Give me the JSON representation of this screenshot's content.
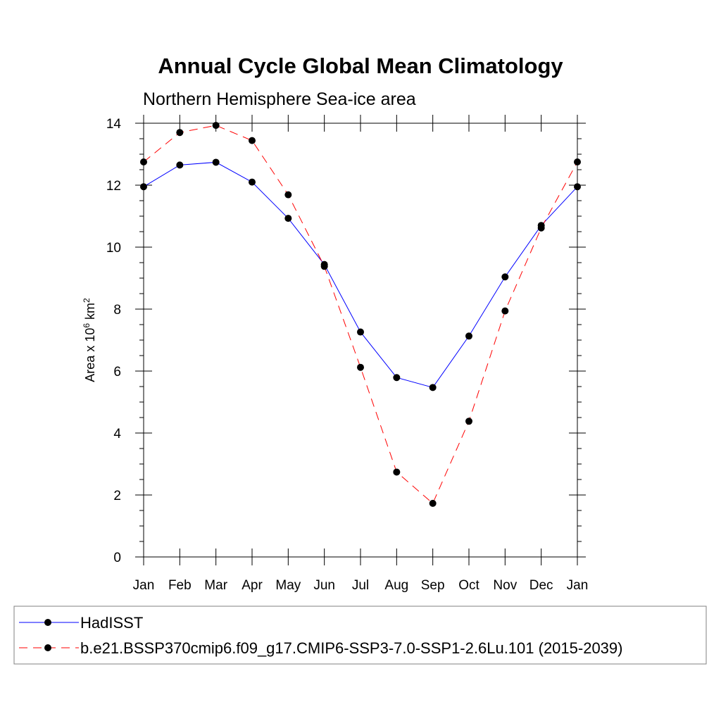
{
  "chart_data": {
    "type": "line",
    "title": "Annual Cycle Global Mean Climatology",
    "subtitle": "Northern Hemisphere Sea-ice area",
    "ylabel": {
      "prefix": "Area x 10",
      "exp": "6",
      "unit": " km",
      "unit_exp": "2"
    },
    "xlabel": "",
    "categories": [
      "Jan",
      "Feb",
      "Mar",
      "Apr",
      "May",
      "Jun",
      "Jul",
      "Aug",
      "Sep",
      "Oct",
      "Nov",
      "Dec",
      "Jan"
    ],
    "ylim": [
      0,
      14
    ],
    "yticks": [
      "0",
      "2",
      "4",
      "6",
      "8",
      "10",
      "12",
      "14"
    ],
    "grid": false,
    "legend_placement": "bottom",
    "series": [
      {
        "name": "HadISST",
        "color": "#0000ff",
        "dash": "solid",
        "marker": "filled-circle",
        "values": [
          11.95,
          12.65,
          12.74,
          12.1,
          10.93,
          9.44,
          7.26,
          5.79,
          5.47,
          7.13,
          9.04,
          10.7,
          11.95
        ]
      },
      {
        "name": "b.e21.BSSP370cmip6.f09_g17.CMIP6-SSP3-7.0-SSP1-2.6Lu.101 (2015-2039)",
        "color": "#ff0000",
        "dash": "dashed",
        "marker": "filled-circle",
        "values": [
          12.75,
          13.7,
          13.93,
          13.44,
          11.69,
          9.38,
          6.12,
          2.74,
          1.73,
          4.38,
          7.94,
          10.62,
          12.75
        ]
      }
    ]
  }
}
